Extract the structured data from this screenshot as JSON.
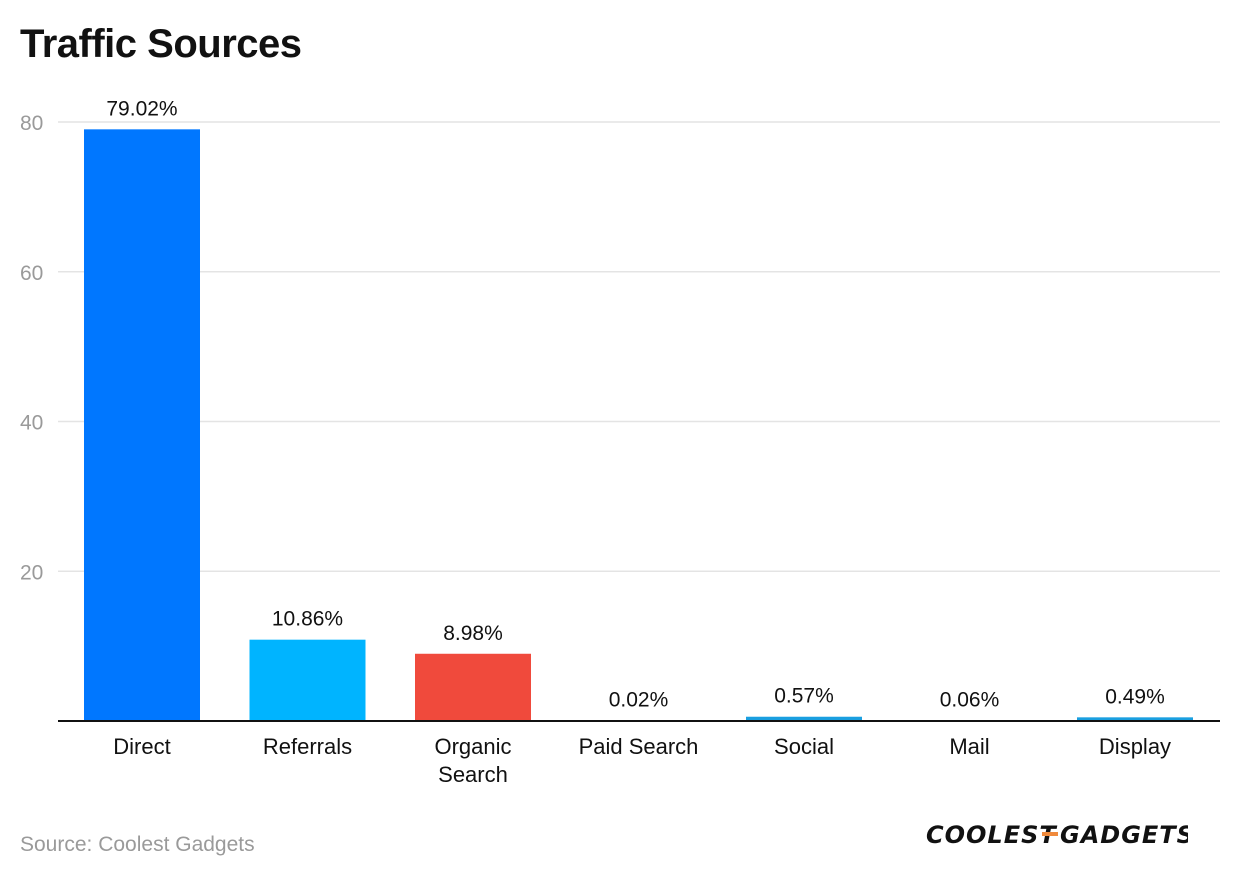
{
  "page": {
    "title": "Traffic Sources",
    "source": "Source: Coolest Gadgets",
    "logo_text": "COOLEST-GADGETS"
  },
  "colors": {
    "grid": "#e4e4e4",
    "axis": "#111111",
    "tick_label": "#9a9a9a",
    "text": "#111111",
    "logo_dash": "#f08a3c"
  },
  "chart_data": {
    "type": "bar",
    "title": "Traffic Sources",
    "xlabel": "",
    "ylabel": "",
    "ylim": [
      0,
      80
    ],
    "yticks": [
      20,
      40,
      60,
      80
    ],
    "grid": true,
    "categories": [
      [
        "Direct"
      ],
      [
        "Referrals"
      ],
      [
        "Organic",
        "Search"
      ],
      [
        "Paid Search"
      ],
      [
        "Social"
      ],
      [
        "Mail"
      ],
      [
        "Display"
      ]
    ],
    "values": [
      79.02,
      10.86,
      8.98,
      0.02,
      0.57,
      0.06,
      0.49
    ],
    "data_labels": [
      "79.02%",
      "10.86%",
      "8.98%",
      "0.02%",
      "0.57%",
      "0.06%",
      "0.49%"
    ],
    "bar_colors": [
      "#0077ff",
      "#00b4ff",
      "#f04a3c",
      "#0077ff",
      "#1a9fe0",
      "#0077ff",
      "#1a9fe0"
    ]
  }
}
